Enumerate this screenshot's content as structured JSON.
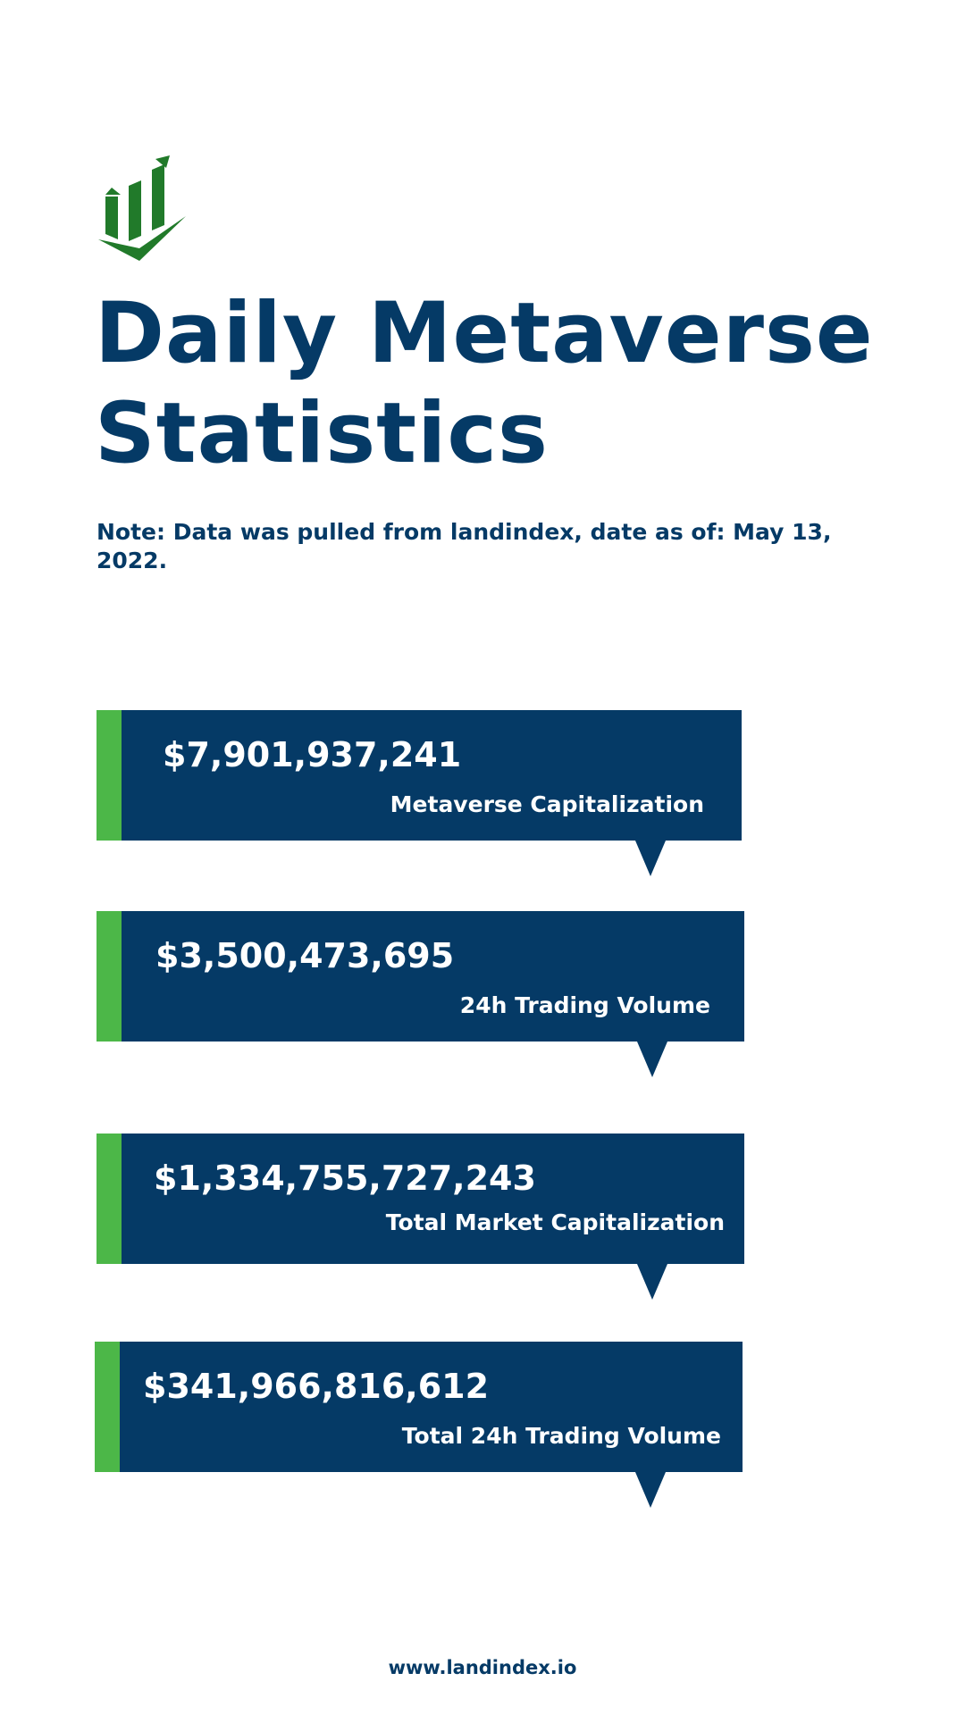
{
  "logo": {
    "icon": "growth-chart-icon",
    "color": "#217a2a"
  },
  "title": {
    "line1": "Daily Metaverse",
    "line2": "Statistics"
  },
  "note": "Note: Data was pulled from landindex, date as of: May 13, 2022.",
  "stats": [
    {
      "value": "$7,901,937,241",
      "label": "Metaverse Capitalization"
    },
    {
      "value": "$3,500,473,695",
      "label": "24h Trading Volume"
    },
    {
      "value": "$1,334,755,727,243",
      "label": "Total Market Capitalization"
    },
    {
      "value": "$341,966,816,612",
      "label": "Total 24h Trading Volume"
    }
  ],
  "footer": "www.landindex.io",
  "colors": {
    "navy": "#053a66",
    "accent_green": "#4cb748",
    "logo_green": "#217a2a"
  }
}
